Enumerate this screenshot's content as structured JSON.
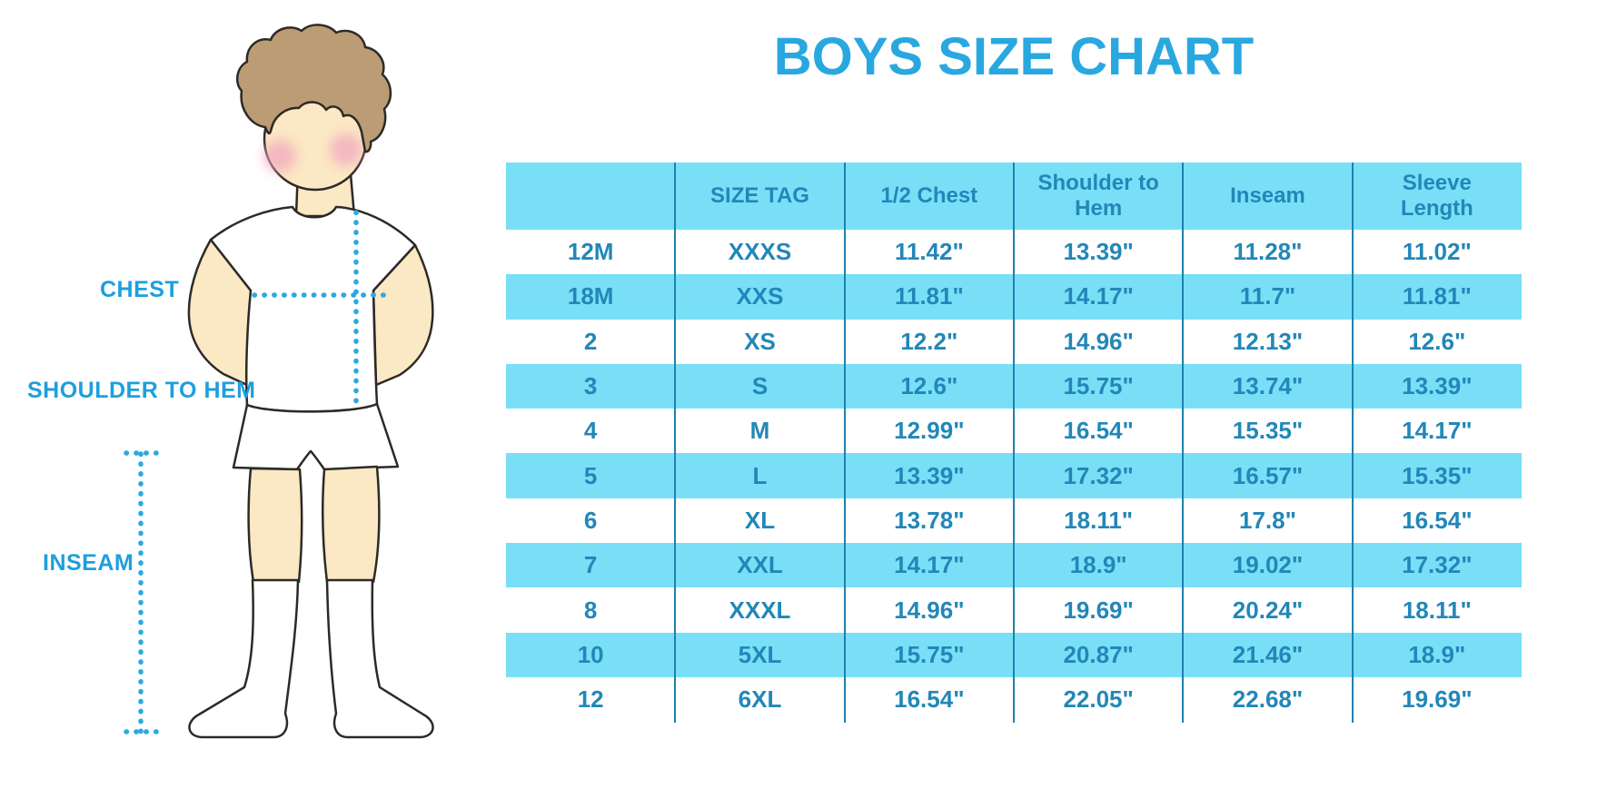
{
  "title": "BOYS SIZE CHART",
  "figure": {
    "description": "boy-in-tshirt-shorts-and-knee-socks-measurement-diagram",
    "labels": {
      "chest": "CHEST",
      "shoulder_to_hem": "SHOULDER TO HEM",
      "inseam": "INSEAM"
    }
  },
  "chart_data": {
    "type": "table",
    "title": "BOYS SIZE CHART",
    "units": "inches",
    "columns": [
      "",
      "SIZE TAG",
      "1/2 Chest",
      "Shoulder to Hem",
      "Inseam",
      "Sleeve Length"
    ],
    "rows": [
      [
        "12M",
        "XXXS",
        "11.42\"",
        "13.39\"",
        "11.28\"",
        "11.02\""
      ],
      [
        "18M",
        "XXS",
        "11.81\"",
        "14.17\"",
        "11.7\"",
        "11.81\""
      ],
      [
        "2",
        "XS",
        "12.2\"",
        "14.96\"",
        "12.13\"",
        "12.6\""
      ],
      [
        "3",
        "S",
        "12.6\"",
        "15.75\"",
        "13.74\"",
        "13.39\""
      ],
      [
        "4",
        "M",
        "12.99\"",
        "16.54\"",
        "15.35\"",
        "14.17\""
      ],
      [
        "5",
        "L",
        "13.39\"",
        "17.32\"",
        "16.57\"",
        "15.35\""
      ],
      [
        "6",
        "XL",
        "13.78\"",
        "18.11\"",
        "17.8\"",
        "16.54\""
      ],
      [
        "7",
        "XXL",
        "14.17\"",
        "18.9\"",
        "19.02\"",
        "17.32\""
      ],
      [
        "8",
        "XXXL",
        "14.96\"",
        "19.69\"",
        "20.24\"",
        "18.11\""
      ],
      [
        "10",
        "5XL",
        "15.75\"",
        "20.87\"",
        "21.46\"",
        "18.9\""
      ],
      [
        "12",
        "6XL",
        "16.54\"",
        "22.05\"",
        "22.68\"",
        "19.69\""
      ]
    ],
    "layout": {
      "header_fill": "#79dff7",
      "row_alternating_fill": [
        "#ffffff",
        "#79dff7"
      ],
      "column_divider_color": "#1e81ae",
      "text_color": "#2287b8",
      "legend_position": "none",
      "grid": "vertical-dividers-only"
    }
  },
  "colors": {
    "title_blue": "#29a8e0",
    "label_blue": "#1d9fde",
    "table_text_blue": "#2287b8",
    "row_fill_cyan": "#79dff7",
    "divider_blue": "#1e81ae",
    "dotted_line_cyan": "#2ba9e0",
    "skin": "#fbe8c4",
    "hair": "#bc9c74",
    "blush": "#f2a9c0",
    "outline": "#2d2a26"
  }
}
